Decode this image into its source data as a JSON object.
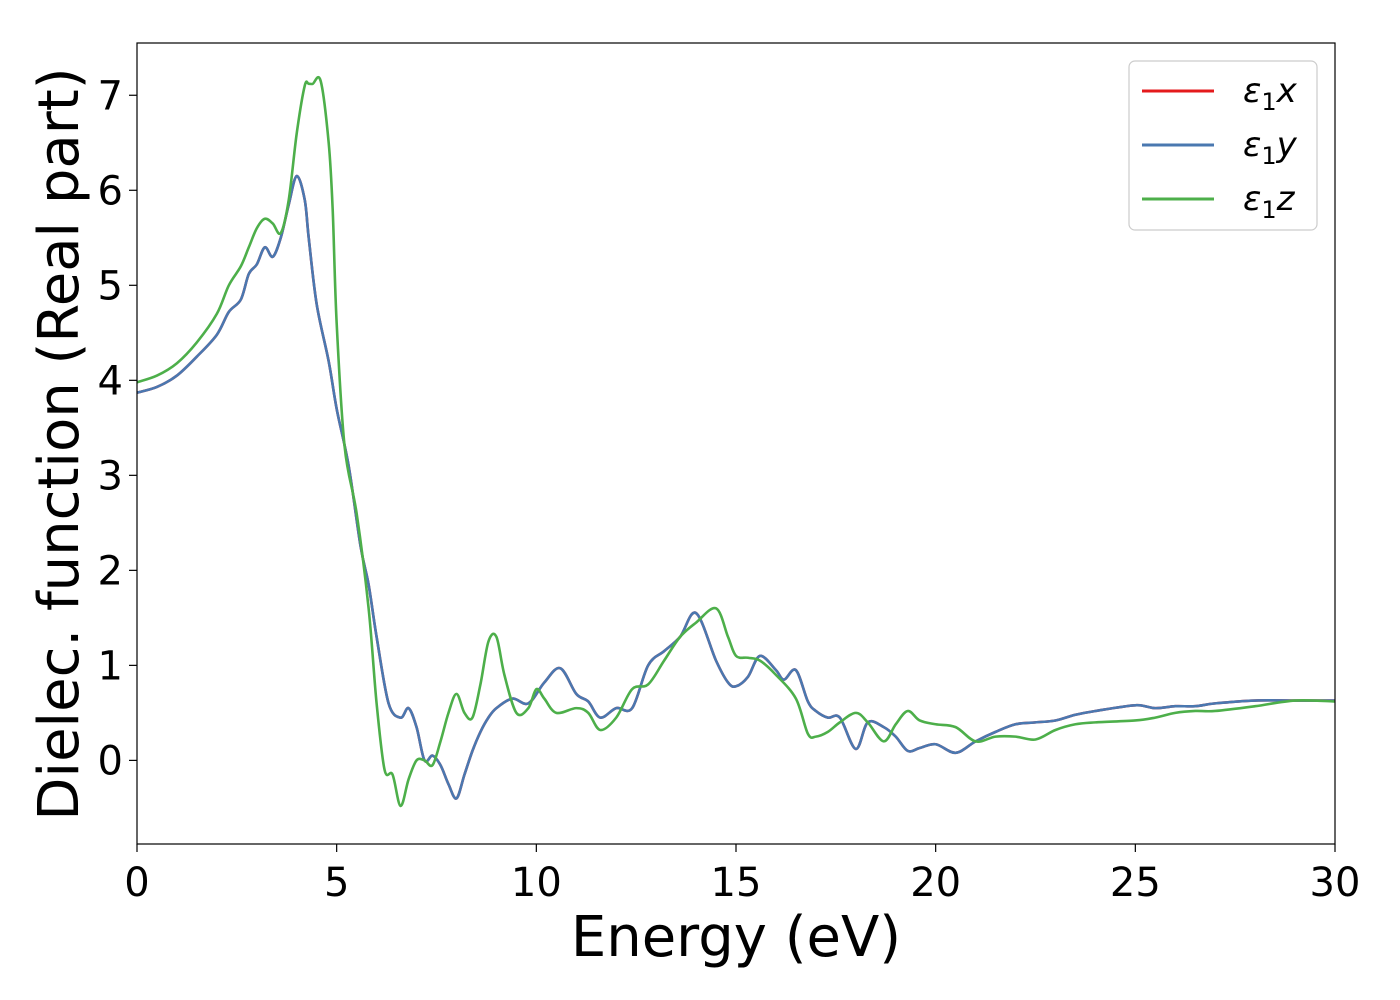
{
  "chart_data": {
    "type": "line",
    "title": "",
    "xlabel": "Energy (eV)",
    "ylabel": "Dielec. function (Real part)",
    "xlim": [
      0,
      30
    ],
    "ylim": [
      -0.88,
      7.55
    ],
    "xticks": [
      0,
      5,
      10,
      15,
      20,
      25,
      30
    ],
    "yticks": [
      0,
      1,
      2,
      3,
      4,
      5,
      6,
      7
    ],
    "grid": false,
    "legend_position": "top-right",
    "series": [
      {
        "name": "ε1x",
        "legend_base": "ε",
        "legend_sub": "1",
        "legend_var": "x",
        "color": "#e41a1c",
        "x": [
          0,
          0.5,
          1,
          1.5,
          2,
          2.3,
          2.6,
          2.8,
          3.0,
          3.2,
          3.4,
          3.6,
          3.8,
          4.0,
          4.2,
          4.3,
          4.5,
          4.8,
          5.0,
          5.3,
          5.6,
          5.8,
          6.0,
          6.3,
          6.6,
          6.8,
          7.0,
          7.2,
          7.4,
          7.6,
          7.8,
          8.0,
          8.2,
          8.4,
          8.6,
          8.8,
          9.0,
          9.4,
          9.8,
          10.2,
          10.6,
          11.0,
          11.3,
          11.6,
          12.0,
          12.4,
          12.8,
          13.2,
          13.6,
          14.0,
          14.5,
          14.8,
          15.0,
          15.3,
          15.6,
          16.0,
          16.2,
          16.5,
          16.8,
          17.0,
          17.3,
          17.6,
          18.0,
          18.3,
          18.7,
          19.0,
          19.3,
          19.6,
          20.0,
          20.5,
          21.0,
          21.5,
          22.0,
          22.5,
          23.0,
          23.5,
          24.0,
          25.0,
          25.5,
          26.0,
          26.5,
          27.0,
          28.0,
          29.0,
          30.0
        ],
        "y": [
          3.87,
          3.93,
          4.05,
          4.25,
          4.48,
          4.72,
          4.85,
          5.12,
          5.22,
          5.4,
          5.3,
          5.5,
          5.85,
          6.15,
          5.9,
          5.5,
          4.8,
          4.2,
          3.7,
          3.1,
          2.25,
          1.85,
          1.3,
          0.6,
          0.45,
          0.55,
          0.35,
          0.0,
          0.05,
          -0.05,
          -0.25,
          -0.4,
          -0.15,
          0.1,
          0.3,
          0.45,
          0.55,
          0.65,
          0.6,
          0.82,
          0.97,
          0.7,
          0.62,
          0.45,
          0.55,
          0.55,
          1.0,
          1.15,
          1.3,
          1.55,
          1.05,
          0.82,
          0.78,
          0.88,
          1.1,
          0.95,
          0.85,
          0.95,
          0.62,
          0.52,
          0.45,
          0.45,
          0.12,
          0.4,
          0.35,
          0.25,
          0.1,
          0.13,
          0.17,
          0.08,
          0.2,
          0.3,
          0.38,
          0.4,
          0.42,
          0.48,
          0.52,
          0.58,
          0.55,
          0.57,
          0.57,
          0.6,
          0.63,
          0.63,
          0.63
        ]
      },
      {
        "name": "ε1y",
        "legend_base": "ε",
        "legend_sub": "1",
        "legend_var": "y",
        "color": "#4a78b0",
        "x": [
          0,
          0.5,
          1,
          1.5,
          2,
          2.3,
          2.6,
          2.8,
          3.0,
          3.2,
          3.4,
          3.6,
          3.8,
          4.0,
          4.2,
          4.3,
          4.5,
          4.8,
          5.0,
          5.3,
          5.6,
          5.8,
          6.0,
          6.3,
          6.6,
          6.8,
          7.0,
          7.2,
          7.4,
          7.6,
          7.8,
          8.0,
          8.2,
          8.4,
          8.6,
          8.8,
          9.0,
          9.4,
          9.8,
          10.2,
          10.6,
          11.0,
          11.3,
          11.6,
          12.0,
          12.4,
          12.8,
          13.2,
          13.6,
          14.0,
          14.5,
          14.8,
          15.0,
          15.3,
          15.6,
          16.0,
          16.2,
          16.5,
          16.8,
          17.0,
          17.3,
          17.6,
          18.0,
          18.3,
          18.7,
          19.0,
          19.3,
          19.6,
          20.0,
          20.5,
          21.0,
          21.5,
          22.0,
          22.5,
          23.0,
          23.5,
          24.0,
          25.0,
          25.5,
          26.0,
          26.5,
          27.0,
          28.0,
          29.0,
          30.0
        ],
        "y": [
          3.87,
          3.93,
          4.05,
          4.25,
          4.48,
          4.72,
          4.85,
          5.12,
          5.22,
          5.4,
          5.3,
          5.5,
          5.85,
          6.15,
          5.9,
          5.5,
          4.8,
          4.2,
          3.7,
          3.1,
          2.25,
          1.85,
          1.3,
          0.6,
          0.45,
          0.55,
          0.35,
          0.0,
          0.05,
          -0.05,
          -0.25,
          -0.4,
          -0.15,
          0.1,
          0.3,
          0.45,
          0.55,
          0.65,
          0.6,
          0.82,
          0.97,
          0.7,
          0.62,
          0.45,
          0.55,
          0.55,
          1.0,
          1.15,
          1.3,
          1.55,
          1.05,
          0.82,
          0.78,
          0.88,
          1.1,
          0.95,
          0.85,
          0.95,
          0.62,
          0.52,
          0.45,
          0.45,
          0.12,
          0.4,
          0.35,
          0.25,
          0.1,
          0.13,
          0.17,
          0.08,
          0.2,
          0.3,
          0.38,
          0.4,
          0.42,
          0.48,
          0.52,
          0.58,
          0.55,
          0.57,
          0.57,
          0.6,
          0.63,
          0.63,
          0.63
        ]
      },
      {
        "name": "ε1z",
        "legend_base": "ε",
        "legend_sub": "1",
        "legend_var": "z",
        "color": "#4daf4a",
        "x": [
          0,
          0.5,
          1,
          1.5,
          2,
          2.3,
          2.6,
          2.8,
          3.0,
          3.2,
          3.4,
          3.6,
          3.8,
          4.0,
          4.2,
          4.3,
          4.4,
          4.6,
          4.8,
          4.9,
          5.0,
          5.2,
          5.5,
          5.8,
          6.0,
          6.2,
          6.4,
          6.6,
          6.8,
          7.0,
          7.2,
          7.4,
          7.6,
          7.8,
          8.0,
          8.2,
          8.4,
          8.6,
          8.8,
          9.0,
          9.2,
          9.5,
          9.8,
          10.0,
          10.2,
          10.5,
          11.0,
          11.3,
          11.6,
          12.0,
          12.4,
          12.8,
          13.2,
          13.6,
          14.0,
          14.5,
          14.8,
          15.0,
          15.3,
          15.6,
          16.0,
          16.5,
          16.8,
          17.0,
          17.3,
          17.6,
          18.0,
          18.3,
          18.7,
          19.0,
          19.3,
          19.6,
          20.0,
          20.5,
          21.0,
          21.5,
          22.0,
          22.5,
          23.0,
          23.5,
          24.0,
          25.0,
          25.5,
          26.0,
          26.5,
          27.0,
          28.0,
          29.0,
          30.0
        ],
        "y": [
          3.98,
          4.05,
          4.18,
          4.4,
          4.7,
          5.0,
          5.2,
          5.4,
          5.6,
          5.7,
          5.65,
          5.55,
          5.9,
          6.6,
          7.1,
          7.12,
          7.12,
          7.15,
          6.5,
          5.8,
          4.6,
          3.3,
          2.6,
          1.6,
          0.6,
          -0.1,
          -0.15,
          -0.48,
          -0.2,
          0.0,
          0.0,
          -0.05,
          0.2,
          0.5,
          0.7,
          0.5,
          0.45,
          0.8,
          1.25,
          1.3,
          0.9,
          0.5,
          0.55,
          0.75,
          0.65,
          0.5,
          0.55,
          0.5,
          0.32,
          0.45,
          0.75,
          0.8,
          1.05,
          1.3,
          1.45,
          1.6,
          1.3,
          1.1,
          1.08,
          1.05,
          0.9,
          0.65,
          0.28,
          0.25,
          0.3,
          0.4,
          0.5,
          0.4,
          0.2,
          0.38,
          0.52,
          0.42,
          0.38,
          0.35,
          0.2,
          0.25,
          0.25,
          0.22,
          0.32,
          0.38,
          0.4,
          0.42,
          0.45,
          0.5,
          0.52,
          0.52,
          0.57,
          0.63,
          0.62
        ]
      }
    ]
  }
}
